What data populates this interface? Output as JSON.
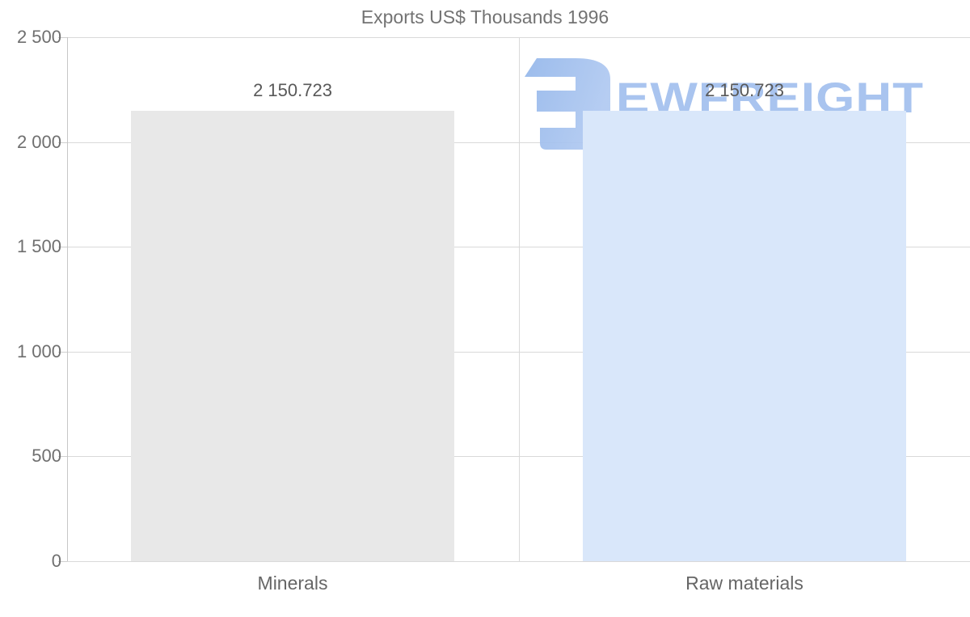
{
  "title": "Exports US$ Thousands 1996",
  "watermark": {
    "text": "EWFREIGHT",
    "icon": "ewfreight-logo-icon",
    "text_color": "#a9c4ef",
    "icon_color_dark": "#93b6ea",
    "icon_color_light": "#b0c9f1"
  },
  "colors": {
    "background": "#ffffff",
    "title_text": "#737373",
    "tick_text": "#6f6f6f",
    "value_label_text": "#595959",
    "category_text": "#666666",
    "gridline": "#d9d9d9",
    "bar_minerals": "#e8e8e8",
    "bar_raw_materials": "#d9e7fa"
  },
  "chart_data": {
    "type": "bar",
    "title": "Exports US$ Thousands 1996",
    "categories": [
      "Minerals",
      "Raw materials"
    ],
    "values": [
      2150.723,
      2150.723
    ],
    "value_labels": [
      "2 150.723",
      "2 150.723"
    ],
    "bar_colors": [
      "#e8e8e8",
      "#d9e7fa"
    ],
    "xlabel": "",
    "ylabel": "",
    "ylim": [
      0,
      2500
    ],
    "yticks": [
      0,
      500,
      1000,
      1500,
      2000,
      2500
    ],
    "ytick_labels": [
      "0",
      "500",
      "1 000",
      "1 500",
      "2 000",
      "2 500"
    ],
    "grid": "horizontal gridlines + vertical category divider, light gray",
    "legend": "none"
  }
}
